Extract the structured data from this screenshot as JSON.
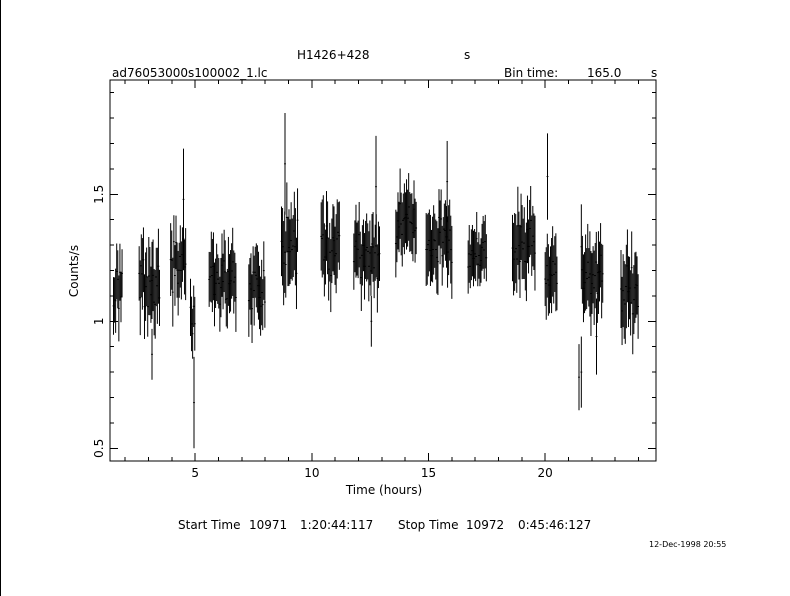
{
  "header": {
    "object_name": "H1426+428",
    "object_unit": "s",
    "file_name": "ad76053000s100002_1.lc",
    "bin_time_label": "Bin time:",
    "bin_time_value": "165.0",
    "bin_time_unit": "s"
  },
  "footer": {
    "start_label": "Start Time",
    "start_day": "10971",
    "start_time": "1:20:44:117",
    "stop_label": "Stop Time",
    "stop_day": "10972",
    "stop_time": "0:45:46:127",
    "timestamp": "12-Dec-1998 20:55"
  },
  "chart_data": {
    "type": "scatter",
    "title": "H1426+428",
    "xlabel": "Time (hours)",
    "ylabel": "Counts/s",
    "xlim": [
      1.35,
      24.75
    ],
    "ylim": [
      0.45,
      1.95
    ],
    "x_ticks": [
      5,
      10,
      15,
      20
    ],
    "y_ticks": [
      0.5,
      1,
      1.5
    ],
    "x_tick_labels": [
      "5",
      "10",
      "15",
      "20"
    ],
    "y_tick_labels": [
      "0.5",
      "1",
      "1.5"
    ],
    "grid": false,
    "series": [
      {
        "style": "error-bars",
        "segments": [
          {
            "start": 1.5,
            "end": 1.9,
            "center": 1.12,
            "spread": 0.09,
            "err": 0.11
          },
          {
            "start": 2.6,
            "end": 3.5,
            "center": 1.15,
            "spread": 0.13,
            "err": 0.13
          },
          {
            "start": 3.95,
            "end": 4.6,
            "center": 1.22,
            "spread": 0.12,
            "err": 0.12
          },
          {
            "start": 4.8,
            "end": 5.0,
            "center": 1.0,
            "spread": 0.08,
            "err": 0.1
          },
          {
            "start": 5.6,
            "end": 6.75,
            "center": 1.15,
            "spread": 0.11,
            "err": 0.12
          },
          {
            "start": 7.3,
            "end": 8.0,
            "center": 1.12,
            "spread": 0.1,
            "err": 0.12
          },
          {
            "start": 8.7,
            "end": 9.4,
            "center": 1.3,
            "spread": 0.15,
            "err": 0.14
          },
          {
            "start": 10.4,
            "end": 11.2,
            "center": 1.3,
            "spread": 0.13,
            "err": 0.13
          },
          {
            "start": 11.8,
            "end": 12.9,
            "center": 1.26,
            "spread": 0.11,
            "err": 0.12
          },
          {
            "start": 13.6,
            "end": 14.5,
            "center": 1.38,
            "spread": 0.12,
            "err": 0.12
          },
          {
            "start": 14.9,
            "end": 16.0,
            "center": 1.3,
            "spread": 0.12,
            "err": 0.12
          },
          {
            "start": 16.7,
            "end": 17.5,
            "center": 1.26,
            "spread": 0.08,
            "err": 0.1
          },
          {
            "start": 18.6,
            "end": 19.6,
            "center": 1.3,
            "spread": 0.12,
            "err": 0.13
          },
          {
            "start": 20.0,
            "end": 20.55,
            "center": 1.18,
            "spread": 0.12,
            "err": 0.13
          },
          {
            "start": 21.55,
            "end": 22.5,
            "center": 1.18,
            "spread": 0.12,
            "err": 0.14
          },
          {
            "start": 23.25,
            "end": 24.0,
            "center": 1.12,
            "spread": 0.13,
            "err": 0.14
          }
        ],
        "spikes": [
          {
            "x": 4.95,
            "y": 0.68,
            "err": 0.18
          },
          {
            "x": 8.85,
            "y": 1.62,
            "err": 0.2
          },
          {
            "x": 4.5,
            "y": 1.48,
            "err": 0.2
          },
          {
            "x": 21.55,
            "y": 0.8,
            "err": 0.14
          },
          {
            "x": 21.45,
            "y": 0.78,
            "err": 0.13
          },
          {
            "x": 12.75,
            "y": 1.53,
            "err": 0.2
          },
          {
            "x": 15.8,
            "y": 1.55,
            "err": 0.16
          },
          {
            "x": 20.1,
            "y": 1.57,
            "err": 0.17
          },
          {
            "x": 22.2,
            "y": 0.94,
            "err": 0.15
          },
          {
            "x": 3.15,
            "y": 0.87,
            "err": 0.1
          },
          {
            "x": 12.55,
            "y": 1.0,
            "err": 0.1
          }
        ]
      }
    ]
  }
}
